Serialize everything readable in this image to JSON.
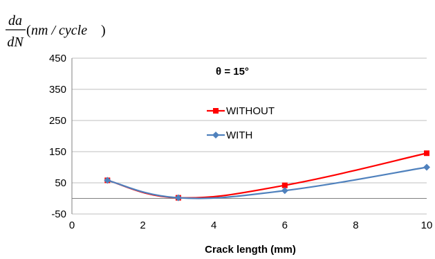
{
  "chart_data": {
    "type": "line",
    "ylabel": {
      "numerator": "da",
      "denominator": "dN",
      "open": "(",
      "unit": "nm / cycle",
      "close": ")"
    },
    "xlabel": "Crack length (mm)",
    "annotation": "θ = 15°",
    "xlim": [
      0,
      10
    ],
    "ylim": [
      -50,
      450
    ],
    "xticks": [
      0,
      2,
      4,
      6,
      8,
      10
    ],
    "yticks": [
      -50,
      50,
      150,
      250,
      350,
      450
    ],
    "grid": true,
    "legend_position": "middle",
    "series": [
      {
        "name": "WITHOUT",
        "color": "#ff0000",
        "marker": "square",
        "x": [
          1,
          3,
          6,
          10
        ],
        "y": [
          58,
          2,
          42,
          145
        ]
      },
      {
        "name": "WITH",
        "color": "#4f81bd",
        "marker": "diamond",
        "x": [
          1,
          3,
          6,
          10
        ],
        "y": [
          58,
          2,
          25,
          100
        ]
      }
    ]
  }
}
